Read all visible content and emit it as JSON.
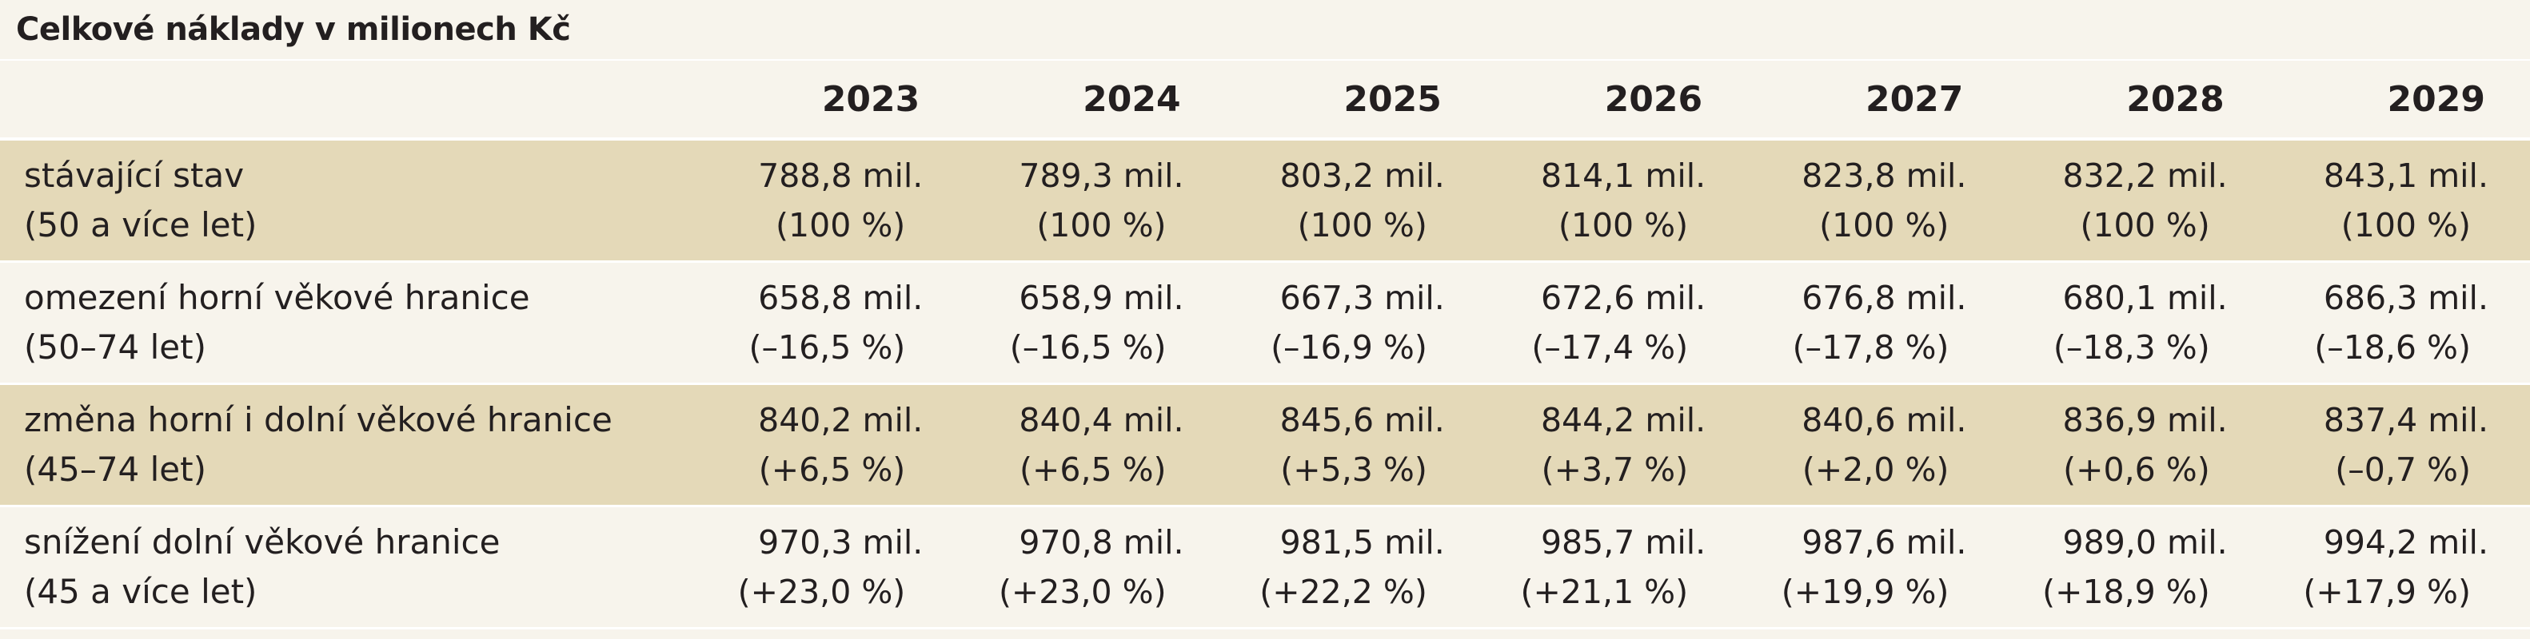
{
  "title": "Celkové náklady v milionech Kč",
  "years": [
    "2023",
    "2024",
    "2025",
    "2026",
    "2027",
    "2028",
    "2029"
  ],
  "rows": [
    {
      "name": "stávající stav",
      "age": "(50 a více let)",
      "cells": [
        {
          "value": "788,8 mil.",
          "pct": "(100 %)"
        },
        {
          "value": "789,3 mil.",
          "pct": "(100 %)"
        },
        {
          "value": "803,2 mil.",
          "pct": "(100 %)"
        },
        {
          "value": "814,1 mil.",
          "pct": "(100 %)"
        },
        {
          "value": "823,8 mil.",
          "pct": "(100 %)"
        },
        {
          "value": "832,2 mil.",
          "pct": "(100 %)"
        },
        {
          "value": "843,1 mil.",
          "pct": "(100 %)"
        }
      ]
    },
    {
      "name": "omezení horní věkové hranice",
      "age": "(50–74 let)",
      "cells": [
        {
          "value": "658,8 mil.",
          "pct": "(–16,5 %)"
        },
        {
          "value": "658,9 mil.",
          "pct": "(–16,5 %)"
        },
        {
          "value": "667,3 mil.",
          "pct": "(–16,9 %)"
        },
        {
          "value": "672,6 mil.",
          "pct": "(–17,4 %)"
        },
        {
          "value": "676,8 mil.",
          "pct": "(–17,8 %)"
        },
        {
          "value": "680,1 mil.",
          "pct": "(–18,3 %)"
        },
        {
          "value": "686,3 mil.",
          "pct": "(–18,6 %)"
        }
      ]
    },
    {
      "name": "změna horní i dolní věkové hranice",
      "age": "(45–74 let)",
      "cells": [
        {
          "value": "840,2 mil.",
          "pct": "(+6,5 %)"
        },
        {
          "value": "840,4 mil.",
          "pct": "(+6,5 %)"
        },
        {
          "value": "845,6 mil.",
          "pct": "(+5,3 %)"
        },
        {
          "value": "844,2 mil.",
          "pct": "(+3,7 %)"
        },
        {
          "value": "840,6 mil.",
          "pct": "(+2,0 %)"
        },
        {
          "value": "836,9 mil.",
          "pct": "(+0,6 %)"
        },
        {
          "value": "837,4 mil.",
          "pct": "(–0,7 %)"
        }
      ]
    },
    {
      "name": "snížení dolní věkové hranice",
      "age": "(45 a více let)",
      "cells": [
        {
          "value": "970,3 mil.",
          "pct": "(+23,0 %)"
        },
        {
          "value": "970,8 mil.",
          "pct": "(+23,0 %)"
        },
        {
          "value": "981,5 mil.",
          "pct": "(+22,2 %)"
        },
        {
          "value": "985,7 mil.",
          "pct": "(+21,1 %)"
        },
        {
          "value": "987,6 mil.",
          "pct": "(+19,9 %)"
        },
        {
          "value": "989,0 mil.",
          "pct": "(+18,9 %)"
        },
        {
          "value": "994,2 mil.",
          "pct": "(+17,9 %)"
        }
      ]
    }
  ]
}
